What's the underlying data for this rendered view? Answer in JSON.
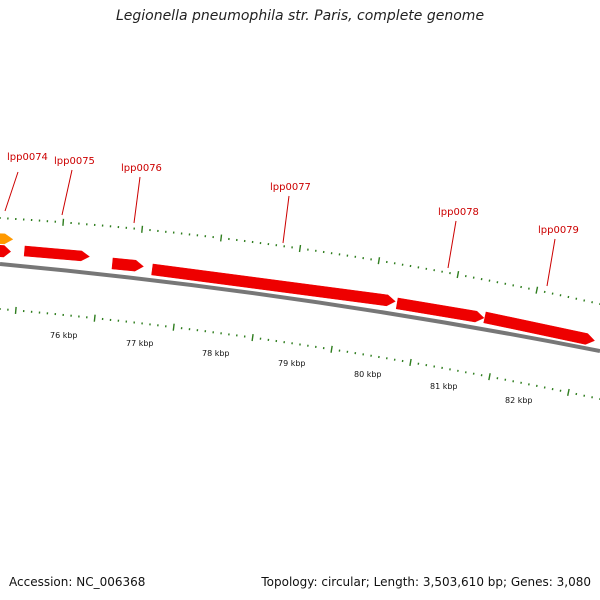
{
  "title": "Legionella pneumophila str. Paris, complete genome",
  "footer": {
    "accession": "Accession: NC_006368",
    "summary": "Topology: circular; Length: 3,503,610 bp; Genes: 3,080"
  },
  "colors": {
    "gene": "#ee0000",
    "gene_orange": "#ff9900",
    "backbone": "#808080",
    "tick": "#2e7d1e",
    "label": "#cc0000"
  },
  "genes": [
    {
      "name": "lpp0074",
      "color": "orange"
    },
    {
      "name": "lpp0075",
      "color": "red"
    },
    {
      "name": "lpp0076",
      "color": "red"
    },
    {
      "name": "lpp0077",
      "color": "red"
    },
    {
      "name": "lpp0078",
      "color": "red"
    },
    {
      "name": "lpp0079",
      "color": "red"
    }
  ],
  "kbp_labels": [
    "76 kbp",
    "77 kbp",
    "78 kbp",
    "79 kbp",
    "80 kbp",
    "81 kbp",
    "82 kbp"
  ]
}
